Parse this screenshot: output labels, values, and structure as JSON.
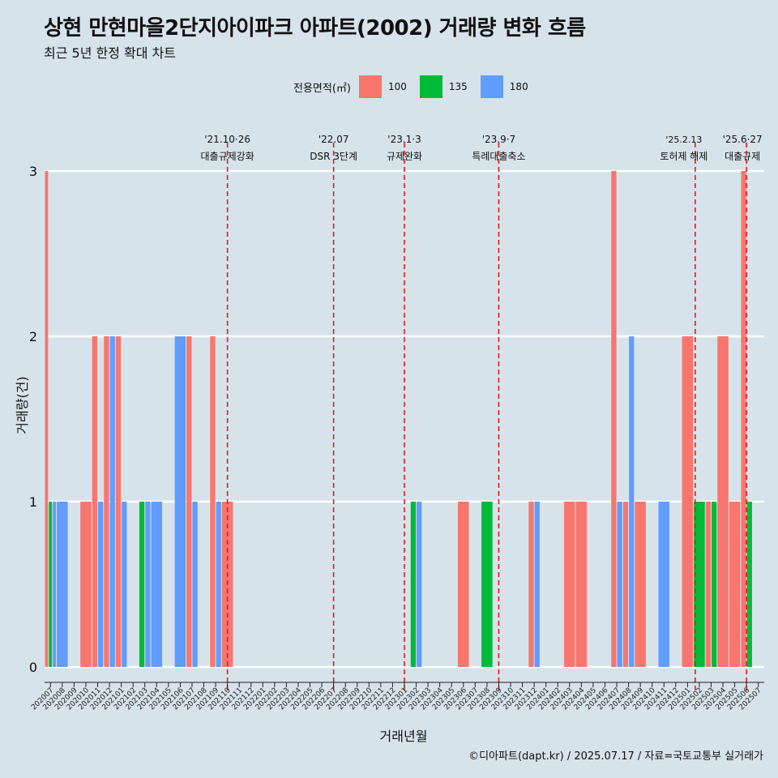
{
  "title": "상현 만현마을2단지아이파크 아파트(2002) 거래량 변화 흐름",
  "subtitle": "최근 5년 한정 확대 차트",
  "legend": {
    "title": "전용면적(㎡)",
    "items": [
      {
        "label": "100",
        "color": "#f8766d"
      },
      {
        "label": "135",
        "color": "#00ba38"
      },
      {
        "label": "180",
        "color": "#619cff"
      }
    ]
  },
  "caption": "©디아파트(dapt.kr) / 2025.07.17 / 자료=국토교통부 실거래가",
  "chart_data": {
    "type": "bar",
    "xlabel": "거래년월",
    "ylabel": "거래량(건)",
    "ylim": [
      0,
      3
    ],
    "yticks": [
      0,
      1,
      2,
      3
    ],
    "grid": "horizontal",
    "legend_position": "top",
    "categories": [
      "202007",
      "202008",
      "202009",
      "202010",
      "202011",
      "202012",
      "202101",
      "202102",
      "202103",
      "202104",
      "202105",
      "202106",
      "202107",
      "202108",
      "202109",
      "202110",
      "202111",
      "202112",
      "202201",
      "202202",
      "202203",
      "202204",
      "202205",
      "202206",
      "202207",
      "202208",
      "202209",
      "202210",
      "202211",
      "202212",
      "202301",
      "202302",
      "202303",
      "202304",
      "202305",
      "202306",
      "202307",
      "202308",
      "202309",
      "202310",
      "202311",
      "202312",
      "202401",
      "202402",
      "202403",
      "202404",
      "202405",
      "202406",
      "202407",
      "202408",
      "202409",
      "202410",
      "202411",
      "202412",
      "202501",
      "202502",
      "202503",
      "202504",
      "202505",
      "202506",
      "202507"
    ],
    "series": [
      {
        "name": "100",
        "color": "#f8766d",
        "values": [
          3,
          0,
          0,
          1,
          2,
          2,
          2,
          0,
          0,
          0,
          0,
          0,
          2,
          0,
          2,
          1,
          0,
          0,
          0,
          0,
          0,
          0,
          0,
          0,
          0,
          0,
          0,
          0,
          0,
          0,
          0,
          0,
          0,
          0,
          0,
          1,
          0,
          0,
          0,
          0,
          0,
          1,
          0,
          0,
          1,
          1,
          0,
          0,
          3,
          1,
          1,
          0,
          0,
          0,
          2,
          0,
          1,
          2,
          1,
          3,
          0
        ]
      },
      {
        "name": "135",
        "color": "#00ba38",
        "values": [
          1,
          0,
          0,
          0,
          0,
          0,
          0,
          0,
          1,
          0,
          0,
          0,
          0,
          0,
          0,
          0,
          0,
          0,
          0,
          0,
          0,
          0,
          0,
          0,
          0,
          0,
          0,
          0,
          0,
          0,
          0,
          1,
          0,
          0,
          0,
          0,
          0,
          1,
          0,
          0,
          0,
          0,
          0,
          0,
          0,
          0,
          0,
          0,
          0,
          0,
          0,
          0,
          0,
          0,
          0,
          1,
          1,
          0,
          0,
          1,
          0
        ]
      },
      {
        "name": "180",
        "color": "#619cff",
        "values": [
          1,
          1,
          0,
          0,
          1,
          2,
          1,
          0,
          1,
          1,
          0,
          2,
          1,
          0,
          1,
          0,
          0,
          0,
          0,
          0,
          0,
          0,
          0,
          0,
          0,
          0,
          0,
          0,
          0,
          0,
          0,
          1,
          0,
          0,
          0,
          0,
          0,
          0,
          0,
          0,
          0,
          1,
          0,
          0,
          0,
          0,
          0,
          0,
          1,
          2,
          0,
          0,
          1,
          0,
          0,
          0,
          0,
          0,
          0,
          0,
          0
        ]
      }
    ],
    "annotations": [
      {
        "category": "202110",
        "date": "'21.10·26",
        "label": "대출규제강화"
      },
      {
        "category": "202207",
        "date": "'22.07",
        "label": "DSR 3단계"
      },
      {
        "category": "202301",
        "date": "'23.1·3",
        "label": "규제완화"
      },
      {
        "category": "202309",
        "date": "'23.9·7",
        "label": "특례대출축소"
      },
      {
        "category": "202502",
        "date": "'25.2.13",
        "label": "토허제 해제"
      },
      {
        "category": "202506",
        "date": "'25.6·27",
        "label": "대출규제"
      }
    ]
  }
}
